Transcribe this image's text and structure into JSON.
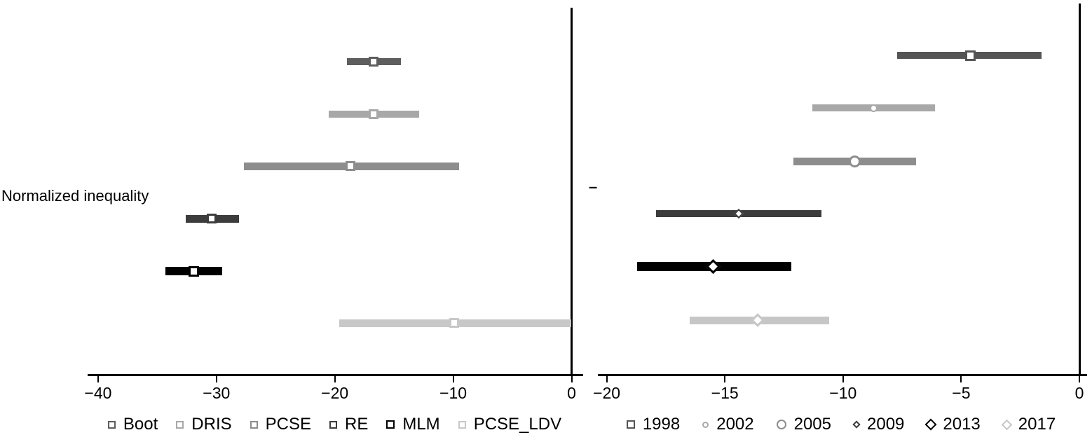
{
  "figure": {
    "left_category_label": "Normalized inequality",
    "right_category_label": "–",
    "background": "#ffffff",
    "axis_color": "#000000"
  },
  "chart_data": [
    {
      "type": "dot-ci",
      "panel": "left",
      "category": "Normalized inequality",
      "xlim": [
        -41,
        1
      ],
      "zero_line": 0,
      "grid": false,
      "legend_position": "bottom",
      "x_ticks": [
        {
          "value": -40,
          "label": "−40"
        },
        {
          "value": -30,
          "label": "−30"
        },
        {
          "value": -20,
          "label": "−20"
        },
        {
          "value": -10,
          "label": "−10"
        },
        {
          "value": 0,
          "label": "0"
        }
      ],
      "series": [
        {
          "name": "Boot",
          "marker": "square",
          "color": "#5e5e5e",
          "estimate": -16.7,
          "ci_low": -19.0,
          "ci_high": -14.4,
          "marker_size": 14,
          "line_width": 10
        },
        {
          "name": "DRIS",
          "marker": "square",
          "color": "#a8a8a8",
          "estimate": -16.7,
          "ci_low": -20.5,
          "ci_high": -12.9,
          "marker_size": 14,
          "line_width": 10
        },
        {
          "name": "PCSE",
          "marker": "square",
          "color": "#8d8d8d",
          "estimate": -18.7,
          "ci_low": -27.7,
          "ci_high": -9.5,
          "marker_size": 14,
          "line_width": 11
        },
        {
          "name": "RE",
          "marker": "square",
          "color": "#3c3c3c",
          "estimate": -30.4,
          "ci_low": -32.6,
          "ci_high": -28.1,
          "marker_size": 14,
          "line_width": 11
        },
        {
          "name": "MLM",
          "marker": "square",
          "color": "#000000",
          "estimate": -31.9,
          "ci_low": -34.3,
          "ci_high": -29.5,
          "marker_size": 15,
          "line_width": 12
        },
        {
          "name": "PCSE_LDV",
          "marker": "square",
          "color": "#c8c8c8",
          "estimate": -9.9,
          "ci_low": -19.6,
          "ci_high": 0.0,
          "marker_size": 14,
          "line_width": 11
        }
      ]
    },
    {
      "type": "dot-ci",
      "panel": "right",
      "category": "–",
      "xlim": [
        -20.5,
        0.5
      ],
      "zero_line": 0,
      "grid": false,
      "legend_position": "bottom",
      "x_ticks": [
        {
          "value": -20,
          "label": "−20"
        },
        {
          "value": -15,
          "label": "−15"
        },
        {
          "value": -10,
          "label": "−10"
        },
        {
          "value": -5,
          "label": "−5"
        },
        {
          "value": 0,
          "label": "0"
        }
      ],
      "series": [
        {
          "name": "1998",
          "marker": "square",
          "color": "#555555",
          "estimate": -4.6,
          "ci_low": -7.7,
          "ci_high": -1.6,
          "marker_size": 15,
          "line_width": 10
        },
        {
          "name": "2002",
          "marker": "circle",
          "color": "#a8a8a8",
          "estimate": -8.7,
          "ci_low": -11.3,
          "ci_high": -6.1,
          "marker_size": 11,
          "line_width": 10
        },
        {
          "name": "2005",
          "marker": "circle",
          "color": "#8d8d8d",
          "estimate": -9.5,
          "ci_low": -12.1,
          "ci_high": -6.9,
          "marker_size": 17,
          "line_width": 11
        },
        {
          "name": "2009",
          "marker": "diamond",
          "color": "#3c3c3c",
          "estimate": -14.4,
          "ci_low": -17.9,
          "ci_high": -10.9,
          "marker_size": 10,
          "line_width": 10
        },
        {
          "name": "2013",
          "marker": "diamond",
          "color": "#000000",
          "estimate": -15.5,
          "ci_low": -18.7,
          "ci_high": -12.2,
          "marker_size": 15,
          "line_width": 13
        },
        {
          "name": "2017",
          "marker": "diamond",
          "color": "#c6c6c6",
          "estimate": -13.6,
          "ci_low": -16.5,
          "ci_high": -10.6,
          "marker_size": 14,
          "line_width": 11
        }
      ]
    }
  ]
}
